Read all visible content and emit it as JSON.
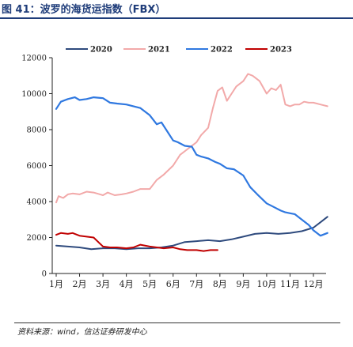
{
  "header": {
    "title": "图 41：波罗的海货运指数（FBX）"
  },
  "footer": {
    "source": "资料来源：wind，信达证券研发中心"
  },
  "chart_data": {
    "type": "line",
    "title": "",
    "xlabel": "",
    "ylabel": "",
    "ylim": [
      0,
      12000
    ],
    "yticks": [
      0,
      2000,
      4000,
      6000,
      8000,
      10000,
      12000
    ],
    "categories": [
      "1月",
      "2月",
      "3月",
      "4月",
      "5月",
      "6月",
      "7月",
      "8月",
      "9月",
      "10月",
      "11月",
      "12月"
    ],
    "legend_position": "top",
    "grid": false,
    "series": [
      {
        "name": "2020",
        "color": "#2e4a7d",
        "x": [
          1,
          1.5,
          2,
          2.5,
          3,
          3.5,
          4,
          4.5,
          5,
          5.5,
          6,
          6.5,
          7,
          7.5,
          8,
          8.5,
          9,
          9.5,
          10,
          10.5,
          11,
          11.5,
          12,
          12.3,
          12.6
        ],
        "values": [
          1550,
          1500,
          1450,
          1350,
          1400,
          1400,
          1350,
          1400,
          1400,
          1450,
          1550,
          1750,
          1800,
          1850,
          1800,
          1900,
          2050,
          2200,
          2250,
          2200,
          2250,
          2350,
          2550,
          2850,
          3150
        ]
      },
      {
        "name": "2021",
        "color": "#f2a9a9",
        "x": [
          1,
          1.1,
          1.3,
          1.5,
          1.7,
          2,
          2.3,
          2.6,
          3,
          3.2,
          3.5,
          3.8,
          4,
          4.3,
          4.6,
          5,
          5.3,
          5.6,
          6,
          6.3,
          6.6,
          7,
          7.2,
          7.5,
          7.7,
          7.9,
          8.1,
          8.3,
          8.5,
          8.7,
          9,
          9.2,
          9.4,
          9.7,
          10,
          10.2,
          10.4,
          10.6,
          10.8,
          11,
          11.2,
          11.4,
          11.6,
          11.8,
          12,
          12.3,
          12.6
        ],
        "values": [
          3950,
          4300,
          4200,
          4400,
          4450,
          4400,
          4550,
          4500,
          4350,
          4500,
          4350,
          4400,
          4450,
          4550,
          4700,
          4700,
          5200,
          5500,
          6000,
          6600,
          6900,
          7300,
          7700,
          8100,
          9200,
          10150,
          10350,
          9600,
          10000,
          10400,
          10700,
          11100,
          11000,
          10700,
          10000,
          10300,
          10200,
          10500,
          9400,
          9300,
          9400,
          9400,
          9550,
          9500,
          9500,
          9400,
          9300
        ]
      },
      {
        "name": "2022",
        "color": "#2f78e0",
        "x": [
          1,
          1.2,
          1.5,
          1.8,
          2,
          2.3,
          2.6,
          3,
          3.3,
          3.6,
          4,
          4.3,
          4.6,
          5,
          5.3,
          5.5,
          5.7,
          6,
          6.2,
          6.5,
          6.8,
          7,
          7.2,
          7.5,
          7.8,
          8,
          8.3,
          8.6,
          9,
          9.3,
          9.6,
          10,
          10.3,
          10.6,
          10.8,
          11,
          11.2,
          11.5,
          11.8,
          12,
          12.3,
          12.6
        ],
        "values": [
          9150,
          9550,
          9700,
          9800,
          9650,
          9700,
          9800,
          9750,
          9500,
          9450,
          9400,
          9300,
          9200,
          8800,
          8300,
          8400,
          8000,
          7400,
          7300,
          7100,
          7050,
          6600,
          6500,
          6400,
          6200,
          6100,
          5850,
          5800,
          5450,
          4800,
          4400,
          3900,
          3700,
          3500,
          3400,
          3350,
          3300,
          3000,
          2700,
          2400,
          2100,
          2250
        ]
      },
      {
        "name": "2023",
        "color": "#c00000",
        "x": [
          1,
          1.2,
          1.5,
          1.7,
          2,
          2.3,
          2.6,
          3,
          3.3,
          3.6,
          4,
          4.3,
          4.6,
          5,
          5.3,
          5.6,
          6,
          6.3,
          6.6,
          7,
          7.3,
          7.6,
          7.9
        ],
        "values": [
          2150,
          2250,
          2200,
          2250,
          2100,
          2050,
          2000,
          1500,
          1450,
          1450,
          1400,
          1450,
          1600,
          1500,
          1450,
          1400,
          1450,
          1350,
          1300,
          1300,
          1250,
          1300,
          1300
        ]
      }
    ]
  }
}
